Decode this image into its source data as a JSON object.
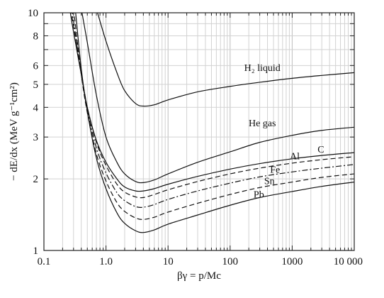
{
  "chart_data": {
    "type": "line",
    "title": "",
    "xlabel": "βγ = p/Mc",
    "ylabel": "− dE/dx (MeV g⁻¹cm²)",
    "x_scale": "log",
    "y_scale": "log",
    "xlim": [
      0.1,
      10000
    ],
    "ylim": [
      1,
      10
    ],
    "grid": true,
    "x_ticks": [
      {
        "value": 0.1,
        "label": "0.1"
      },
      {
        "value": 1,
        "label": "1.0"
      },
      {
        "value": 10,
        "label": "10"
      },
      {
        "value": 100,
        "label": "100"
      },
      {
        "value": 1000,
        "label": "1000"
      },
      {
        "value": 10000,
        "label": "10 000"
      }
    ],
    "y_ticks": [
      {
        "value": 1,
        "label": "1"
      },
      {
        "value": 2,
        "label": "2"
      },
      {
        "value": 3,
        "label": "3"
      },
      {
        "value": 4,
        "label": "4"
      },
      {
        "value": 5,
        "label": "5"
      },
      {
        "value": 6,
        "label": "6"
      },
      {
        "value": 8,
        "label": "8"
      },
      {
        "value": 10,
        "label": "10"
      }
    ],
    "series": [
      {
        "name": "H₂ liquid",
        "dash": "solid",
        "label_at": [
          330,
          5.7
        ],
        "x": [
          0.7,
          1,
          1.5,
          2,
          3,
          4,
          6,
          10,
          30,
          100,
          300,
          1000,
          3000,
          10000
        ],
        "y": [
          10.4,
          7.6,
          5.6,
          4.7,
          4.15,
          4.05,
          4.1,
          4.3,
          4.65,
          4.9,
          5.1,
          5.3,
          5.45,
          5.6
        ]
      },
      {
        "name": "He gas",
        "dash": "solid",
        "label_at": [
          330,
          3.33
        ],
        "x": [
          0.4,
          0.5,
          0.7,
          1,
          1.5,
          2,
          3,
          4,
          6,
          10,
          30,
          100,
          300,
          1000,
          3000,
          10000
        ],
        "y": [
          10.4,
          7.5,
          4.5,
          3.0,
          2.35,
          2.1,
          1.95,
          1.93,
          1.98,
          2.1,
          2.35,
          2.6,
          2.85,
          3.05,
          3.2,
          3.3
        ]
      },
      {
        "name": "C",
        "dash": "solid",
        "label_at": [
          2900,
          2.58
        ],
        "x": [
          0.26,
          0.3,
          0.4,
          0.5,
          0.7,
          1,
          1.5,
          2,
          3,
          4,
          6,
          10,
          30,
          100,
          300,
          1000,
          3000,
          10000
        ],
        "y": [
          10.4,
          8.3,
          5.5,
          4.0,
          2.9,
          2.35,
          2.0,
          1.85,
          1.78,
          1.78,
          1.82,
          1.9,
          2.05,
          2.2,
          2.32,
          2.43,
          2.51,
          2.58
        ]
      },
      {
        "name": "Al",
        "dash": "dashed",
        "label_at": [
          1100,
          2.42
        ],
        "x": [
          0.27,
          0.3,
          0.4,
          0.5,
          0.7,
          1,
          1.5,
          2,
          3,
          4,
          6,
          10,
          30,
          100,
          300,
          1000,
          3000,
          10000
        ],
        "y": [
          10.4,
          8.8,
          5.6,
          4.0,
          2.85,
          2.28,
          1.9,
          1.76,
          1.68,
          1.67,
          1.72,
          1.8,
          1.95,
          2.1,
          2.22,
          2.33,
          2.41,
          2.48
        ]
      },
      {
        "name": "Fe",
        "dash": "dashdot",
        "label_at": [
          530,
          2.12
        ],
        "x": [
          0.28,
          0.3,
          0.4,
          0.5,
          0.7,
          1,
          1.5,
          2,
          3,
          4,
          6,
          10,
          30,
          100,
          300,
          1000,
          3000,
          10000
        ],
        "y": [
          10.4,
          9.2,
          5.5,
          3.9,
          2.7,
          2.12,
          1.75,
          1.62,
          1.53,
          1.52,
          1.56,
          1.64,
          1.78,
          1.92,
          2.04,
          2.14,
          2.22,
          2.3
        ]
      },
      {
        "name": "Sn",
        "dash": "dashed",
        "label_at": [
          430,
          1.9
        ],
        "x": [
          0.3,
          0.4,
          0.5,
          0.7,
          1,
          1.5,
          2,
          3,
          4,
          6,
          10,
          30,
          100,
          300,
          1000,
          3000,
          10000
        ],
        "y": [
          10.4,
          5.5,
          3.8,
          2.55,
          1.96,
          1.59,
          1.46,
          1.37,
          1.35,
          1.38,
          1.45,
          1.58,
          1.72,
          1.84,
          1.94,
          2.03,
          2.1
        ]
      },
      {
        "name": "Pb",
        "dash": "solid",
        "label_at": [
          290,
          1.67
        ],
        "x": [
          0.32,
          0.4,
          0.5,
          0.7,
          1,
          1.5,
          2,
          3,
          4,
          6,
          10,
          30,
          100,
          300,
          1000,
          3000,
          10000
        ],
        "y": [
          10.4,
          5.8,
          3.85,
          2.45,
          1.82,
          1.44,
          1.3,
          1.21,
          1.19,
          1.22,
          1.29,
          1.41,
          1.55,
          1.67,
          1.77,
          1.86,
          1.94
        ]
      }
    ]
  }
}
